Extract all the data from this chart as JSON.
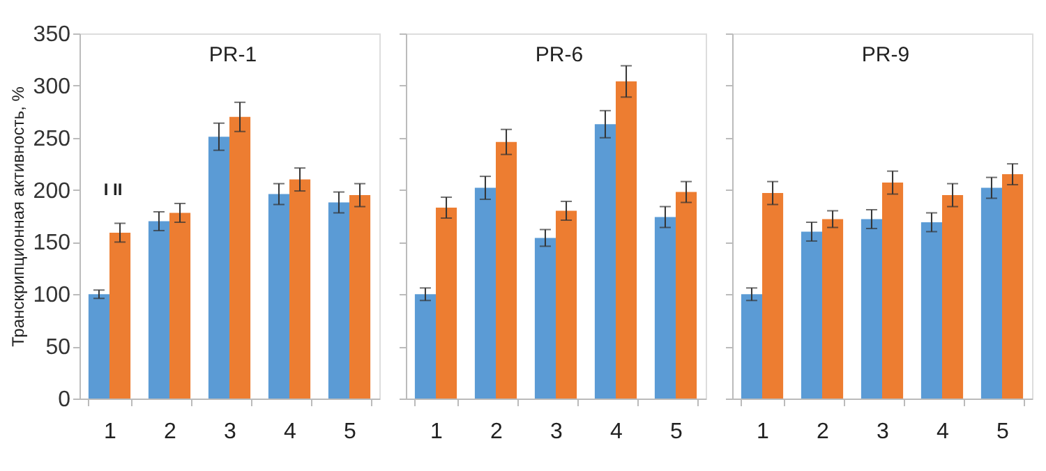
{
  "chart_data": [
    {
      "type": "bar",
      "title": "PR-1",
      "ylabel": "Транскрипционная активность, %",
      "categories": [
        "1",
        "2",
        "3",
        "4",
        "5"
      ],
      "ylim": [
        0,
        350
      ],
      "yticks": [
        0,
        50,
        100,
        150,
        200,
        250,
        300,
        350
      ],
      "grid": false,
      "legend": false,
      "annotations": [
        "I II"
      ],
      "series": [
        {
          "color": "#5b9bd5",
          "values": [
            100,
            170,
            251,
            196,
            188
          ],
          "errors": [
            4,
            9,
            13,
            10,
            10
          ]
        },
        {
          "color": "#ed7d31",
          "values": [
            159,
            178,
            270,
            210,
            195
          ],
          "errors": [
            9,
            9,
            14,
            11,
            11
          ]
        }
      ]
    },
    {
      "type": "bar",
      "title": "PR-6",
      "categories": [
        "1",
        "2",
        "3",
        "4",
        "5"
      ],
      "ylim": [
        0,
        350
      ],
      "yticks": [
        0,
        50,
        100,
        150,
        200,
        250,
        300,
        350
      ],
      "grid": false,
      "legend": false,
      "tick_labels": "x",
      "series": [
        {
          "color": "#5b9bd5",
          "values": [
            100,
            202,
            154,
            263,
            174
          ],
          "errors": [
            6,
            11,
            8,
            13,
            10
          ]
        },
        {
          "color": "#ed7d31",
          "values": [
            183,
            246,
            180,
            304,
            198
          ],
          "errors": [
            10,
            12,
            9,
            15,
            10
          ]
        }
      ]
    },
    {
      "type": "bar",
      "title": "PR-9",
      "categories": [
        "1",
        "2",
        "3",
        "4",
        "5"
      ],
      "ylim": [
        0,
        350
      ],
      "yticks": [
        0,
        50,
        100,
        150,
        200,
        250,
        300,
        350
      ],
      "grid": false,
      "legend": false,
      "tick_labels": "x",
      "series": [
        {
          "color": "#5b9bd5",
          "values": [
            100,
            160,
            172,
            169,
            202
          ],
          "errors": [
            6,
            9,
            9,
            9,
            10
          ]
        },
        {
          "color": "#ed7d31",
          "values": [
            197,
            172,
            207,
            195,
            215
          ],
          "errors": [
            11,
            8,
            11,
            11,
            10
          ]
        }
      ]
    }
  ]
}
